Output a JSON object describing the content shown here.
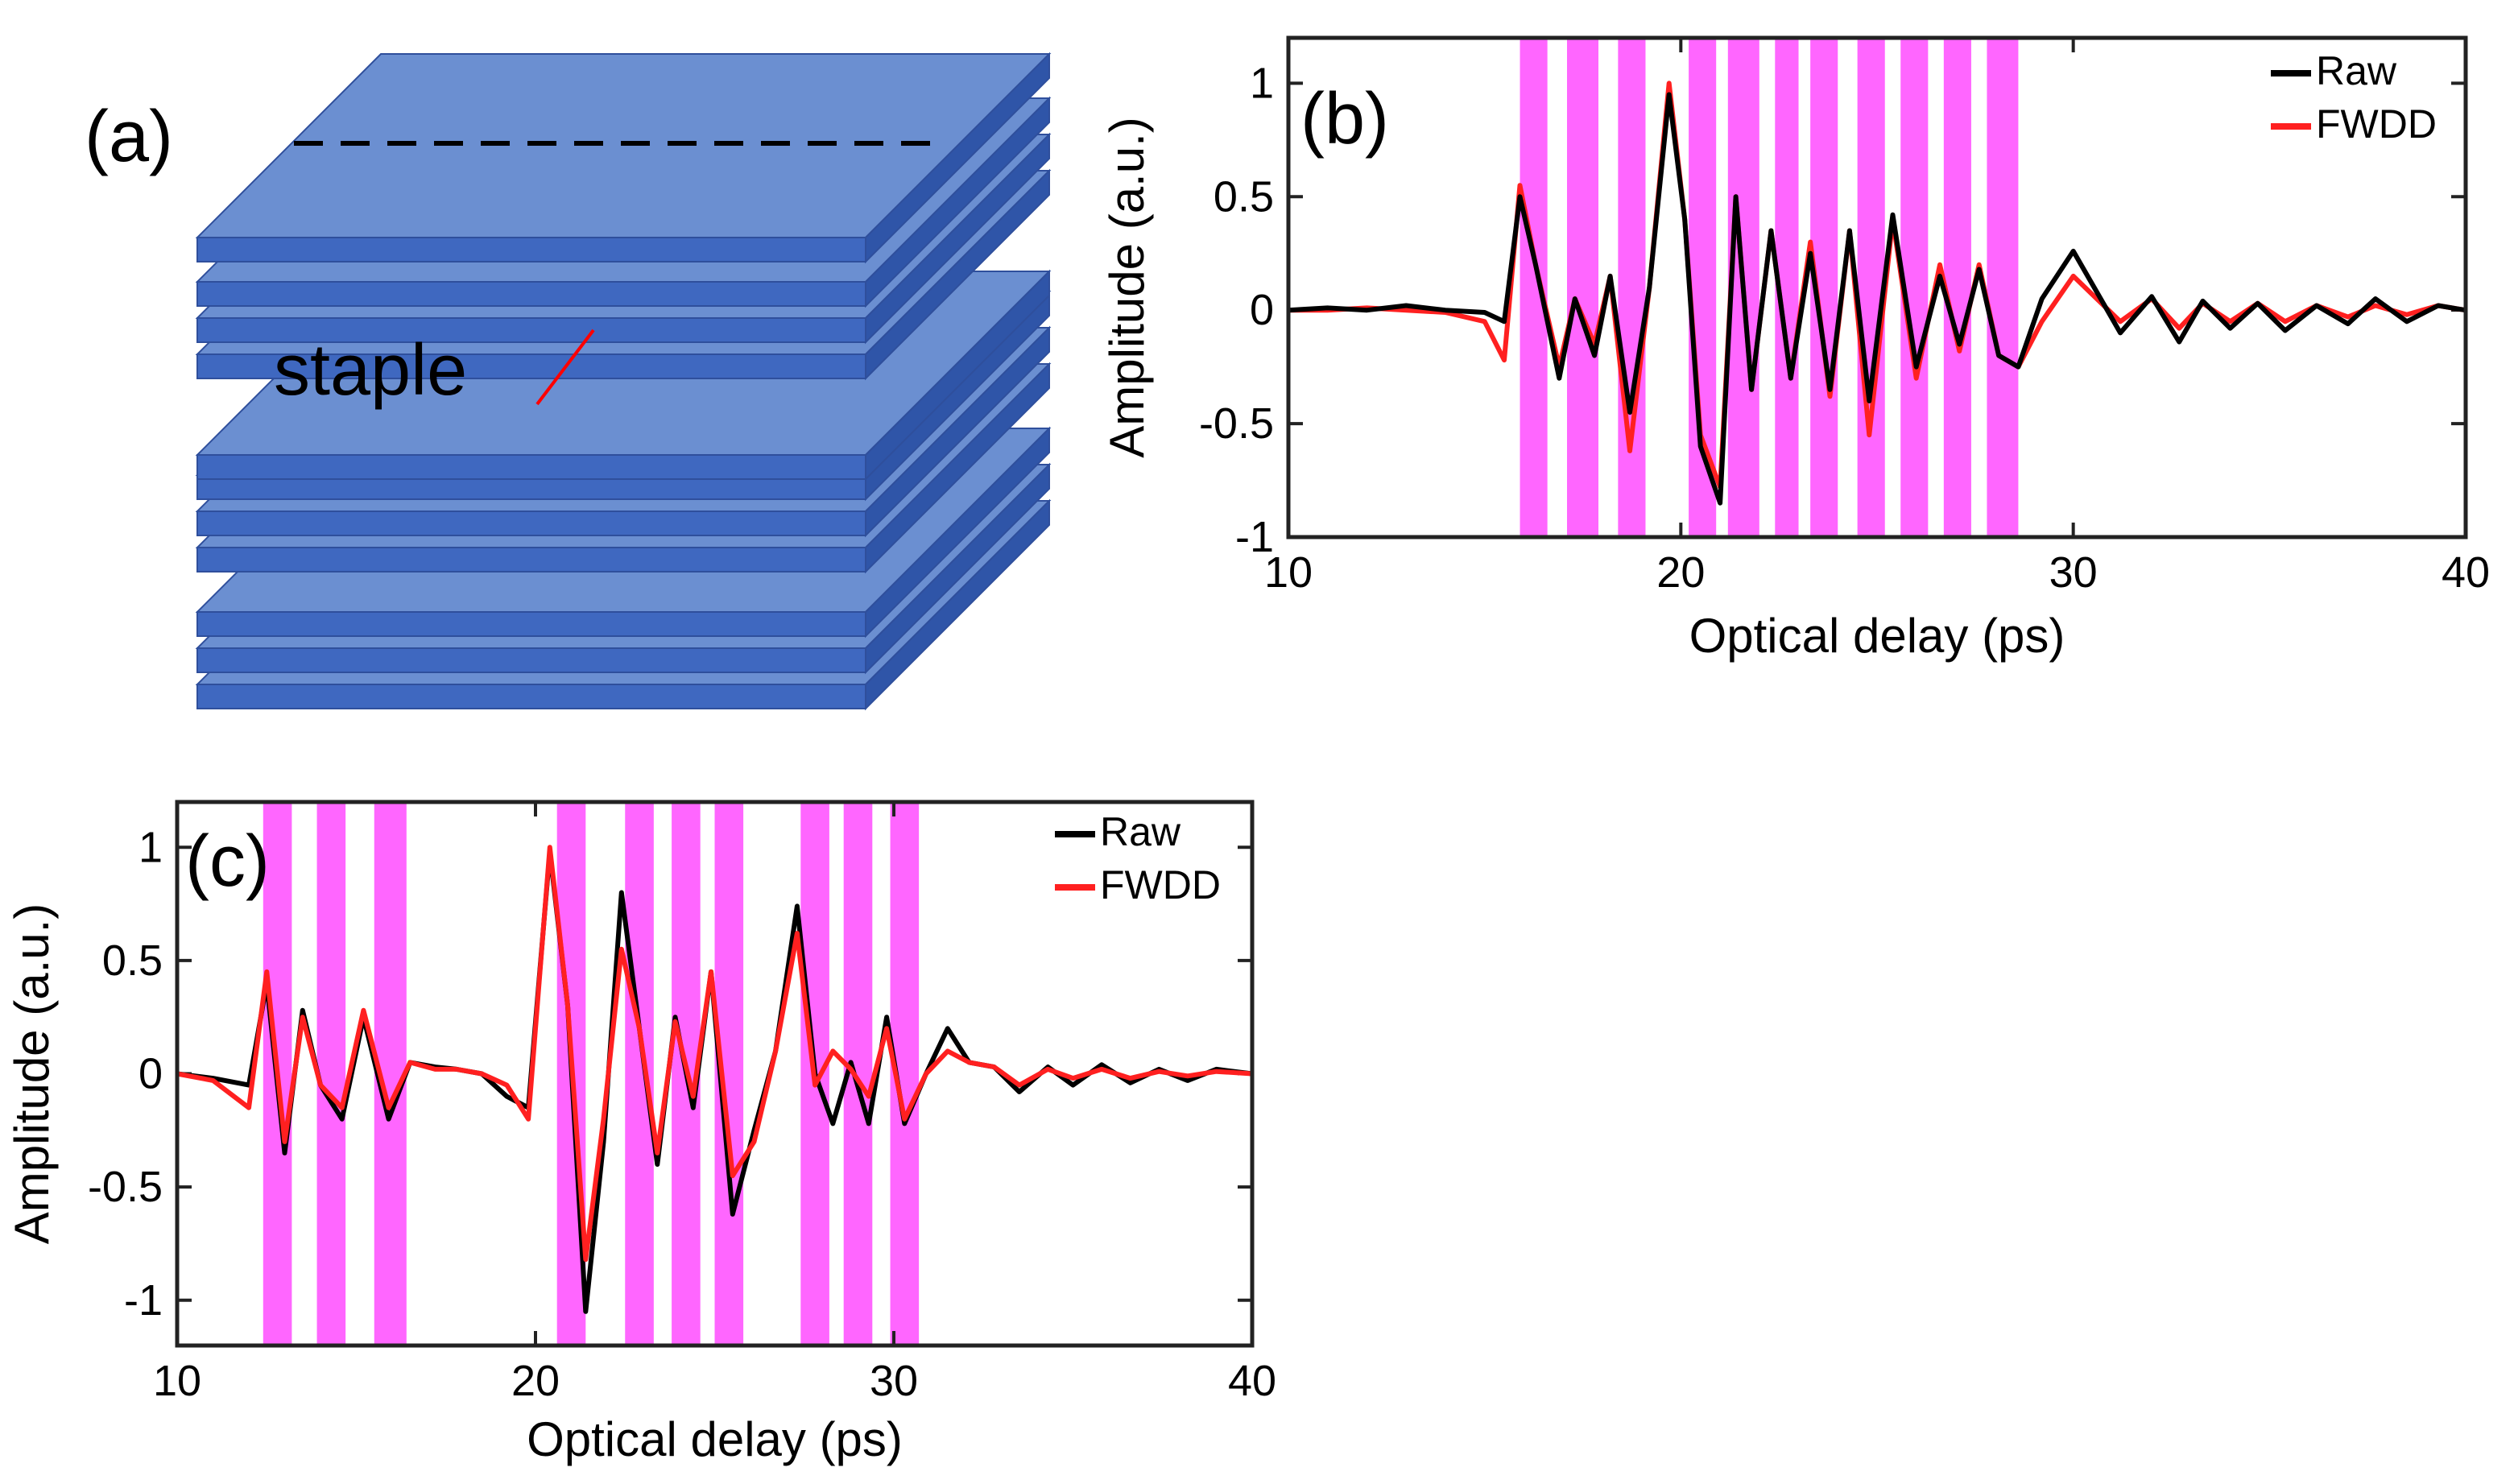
{
  "panel_a": {
    "label": "(a)",
    "staple_text": "staple",
    "slab_color": "#6b8fd1",
    "slab_edge": "#2f4f9c",
    "staple_color": "#ff0000"
  },
  "colors": {
    "raw": "#000000",
    "fwdd": "#ff2020",
    "band": "#ff66ff"
  },
  "chart_data": [
    {
      "id": "b",
      "type": "line",
      "panel_label": "(b)",
      "xlabel": "Optical delay (ps)",
      "ylabel": "Amplitude (a.u.)",
      "xlim": [
        10,
        40
      ],
      "ylim": [
        -1,
        1.2
      ],
      "xticks": [
        10,
        20,
        30,
        40
      ],
      "xtick_labels": [
        "10",
        "20",
        "30",
        "40"
      ],
      "yticks": [
        -1,
        -0.5,
        0,
        0.5,
        1
      ],
      "ytick_labels": [
        "-1",
        "-0.5",
        "0",
        "0.5",
        "1"
      ],
      "legend": {
        "position": "top-right",
        "entries": [
          "Raw",
          "FWDD"
        ]
      },
      "highlight_bands": [
        [
          15.9,
          16.6
        ],
        [
          17.1,
          17.9
        ],
        [
          18.4,
          19.1
        ],
        [
          20.2,
          20.9
        ],
        [
          21.2,
          22.0
        ],
        [
          22.4,
          23.0
        ],
        [
          23.3,
          24.0
        ],
        [
          24.5,
          25.2
        ],
        [
          25.6,
          26.3
        ],
        [
          26.7,
          27.4
        ],
        [
          27.8,
          28.6
        ]
      ],
      "series": [
        {
          "name": "Raw",
          "color": "#000000",
          "x": [
            10,
            11,
            12,
            13,
            14,
            15,
            15.5,
            15.9,
            16.3,
            16.9,
            17.3,
            17.8,
            18.2,
            18.7,
            19.2,
            19.7,
            20.1,
            20.5,
            21.0,
            21.4,
            21.8,
            22.3,
            22.8,
            23.3,
            23.8,
            24.3,
            24.8,
            25.4,
            26.0,
            26.6,
            27.1,
            27.6,
            28.1,
            28.6,
            29.2,
            30.0,
            30.6,
            31.2,
            32.0,
            32.7,
            33.3,
            34.0,
            34.7,
            35.4,
            36.2,
            37.0,
            37.7,
            38.5,
            39.3,
            40
          ],
          "y": [
            0,
            0.01,
            0,
            0.02,
            0,
            -0.01,
            -0.05,
            0.5,
            0.2,
            -0.3,
            0.05,
            -0.2,
            0.15,
            -0.45,
            0.1,
            0.95,
            0.4,
            -0.6,
            -0.85,
            0.5,
            -0.35,
            0.35,
            -0.3,
            0.25,
            -0.35,
            0.35,
            -0.4,
            0.42,
            -0.25,
            0.15,
            -0.15,
            0.18,
            -0.2,
            -0.25,
            0.05,
            0.26,
            0.08,
            -0.1,
            0.06,
            -0.14,
            0.04,
            -0.08,
            0.03,
            -0.09,
            0.02,
            -0.06,
            0.05,
            -0.05,
            0.02,
            0
          ]
        },
        {
          "name": "FWDD",
          "color": "#ff2020",
          "x": [
            10,
            11,
            12,
            13,
            14,
            15,
            15.5,
            15.9,
            16.3,
            16.9,
            17.3,
            17.8,
            18.2,
            18.7,
            19.2,
            19.7,
            20.1,
            20.5,
            21.0,
            21.4,
            21.8,
            22.3,
            22.8,
            23.3,
            23.8,
            24.3,
            24.8,
            25.4,
            26.0,
            26.6,
            27.1,
            27.6,
            28.1,
            28.6,
            29.2,
            30.0,
            30.6,
            31.2,
            32.0,
            32.7,
            33.3,
            34.0,
            34.7,
            35.4,
            36.2,
            37.0,
            37.7,
            38.5,
            39.3,
            40
          ],
          "y": [
            0,
            0,
            0.01,
            0,
            -0.01,
            -0.05,
            -0.22,
            0.55,
            0.2,
            -0.25,
            0.05,
            -0.15,
            0.15,
            -0.62,
            0.1,
            1.0,
            0.4,
            -0.55,
            -0.78,
            0.5,
            -0.35,
            0.35,
            -0.3,
            0.3,
            -0.38,
            0.35,
            -0.55,
            0.4,
            -0.3,
            0.2,
            -0.18,
            0.2,
            -0.2,
            -0.25,
            -0.05,
            0.15,
            0.05,
            -0.05,
            0.05,
            -0.08,
            0.03,
            -0.05,
            0.03,
            -0.05,
            0.02,
            -0.03,
            0.02,
            -0.02,
            0.02,
            0
          ]
        }
      ]
    },
    {
      "id": "c",
      "type": "line",
      "panel_label": "(c)",
      "xlabel": "Optical delay (ps)",
      "ylabel": "Amplitude (a.u.)",
      "xlim": [
        10,
        40
      ],
      "ylim": [
        -1.2,
        1.2
      ],
      "xticks": [
        10,
        20,
        30,
        40
      ],
      "xtick_labels": [
        "10",
        "20",
        "30",
        "40"
      ],
      "yticks": [
        -1,
        -0.5,
        0,
        0.5,
        1
      ],
      "ytick_labels": [
        "-1",
        "-0.5",
        "0",
        "0.5",
        "1"
      ],
      "legend": {
        "position": "top-right",
        "entries": [
          "Raw",
          "FWDD"
        ]
      },
      "highlight_bands": [
        [
          12.4,
          13.2
        ],
        [
          13.9,
          14.7
        ],
        [
          15.5,
          16.4
        ],
        [
          20.6,
          21.4
        ],
        [
          22.5,
          23.3
        ],
        [
          23.8,
          24.6
        ],
        [
          25.0,
          25.8
        ],
        [
          27.4,
          28.2
        ],
        [
          28.6,
          29.4
        ],
        [
          29.9,
          30.7
        ]
      ],
      "series": [
        {
          "name": "Raw",
          "color": "#000000",
          "x": [
            10,
            11,
            12,
            12.5,
            13.0,
            13.5,
            14.0,
            14.6,
            15.2,
            15.9,
            16.5,
            17.2,
            17.8,
            18.5,
            19.2,
            19.8,
            20.4,
            20.9,
            21.4,
            21.9,
            22.4,
            22.9,
            23.4,
            23.9,
            24.4,
            24.9,
            25.5,
            26.1,
            26.7,
            27.3,
            27.8,
            28.3,
            28.8,
            29.3,
            29.8,
            30.3,
            30.9,
            31.5,
            32.1,
            32.8,
            33.5,
            34.3,
            35.0,
            35.8,
            36.6,
            37.4,
            38.2,
            39.0,
            40
          ],
          "y": [
            0,
            -0.02,
            -0.05,
            0.4,
            -0.35,
            0.28,
            -0.05,
            -0.2,
            0.25,
            -0.2,
            0.05,
            0.03,
            0.02,
            0,
            -0.1,
            -0.15,
            0.98,
            0.3,
            -1.05,
            -0.3,
            0.8,
            0.2,
            -0.4,
            0.25,
            -0.15,
            0.45,
            -0.62,
            -0.25,
            0.1,
            0.74,
            0,
            -0.22,
            0.05,
            -0.22,
            0.25,
            -0.22,
            0,
            0.2,
            0.05,
            0.03,
            -0.08,
            0.03,
            -0.05,
            0.04,
            -0.04,
            0.02,
            -0.03,
            0.02,
            0
          ]
        },
        {
          "name": "FWDD",
          "color": "#ff2020",
          "x": [
            10,
            11,
            12,
            12.5,
            13.0,
            13.5,
            14.0,
            14.6,
            15.2,
            15.9,
            16.5,
            17.2,
            17.8,
            18.5,
            19.2,
            19.8,
            20.4,
            20.9,
            21.4,
            21.9,
            22.4,
            22.9,
            23.4,
            23.9,
            24.4,
            24.9,
            25.5,
            26.1,
            26.7,
            27.3,
            27.8,
            28.3,
            28.8,
            29.3,
            29.8,
            30.3,
            30.9,
            31.5,
            32.1,
            32.8,
            33.5,
            34.3,
            35.0,
            35.8,
            36.6,
            37.4,
            38.2,
            39.0,
            40
          ],
          "y": [
            0,
            -0.03,
            -0.15,
            0.45,
            -0.3,
            0.25,
            -0.05,
            -0.15,
            0.28,
            -0.15,
            0.05,
            0.02,
            0.02,
            0,
            -0.05,
            -0.2,
            1.0,
            0.3,
            -0.82,
            -0.2,
            0.55,
            0.2,
            -0.35,
            0.23,
            -0.1,
            0.45,
            -0.45,
            -0.3,
            0.1,
            0.62,
            -0.05,
            0.1,
            0.02,
            -0.1,
            0.2,
            -0.2,
            0,
            0.1,
            0.05,
            0.03,
            -0.05,
            0.02,
            -0.02,
            0.02,
            -0.02,
            0.01,
            -0.01,
            0.01,
            0
          ]
        }
      ]
    }
  ]
}
